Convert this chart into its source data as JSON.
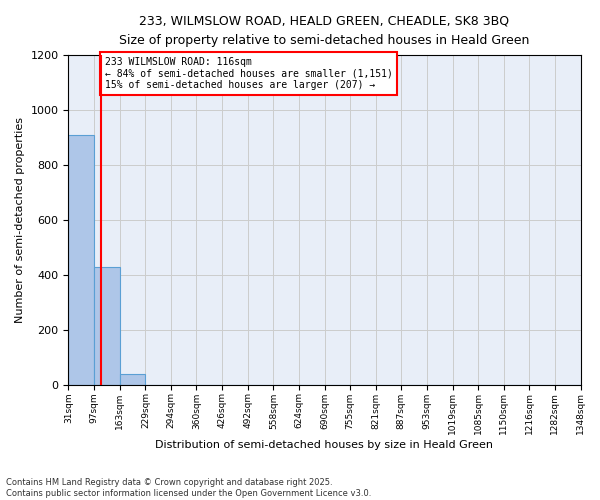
{
  "title_line1": "233, WILMSLOW ROAD, HEALD GREEN, CHEADLE, SK8 3BQ",
  "title_line2": "Size of property relative to semi-detached houses in Heald Green",
  "xlabel": "Distribution of semi-detached houses by size in Heald Green",
  "ylabel": "Number of semi-detached properties",
  "annotation_title": "233 WILMSLOW ROAD: 116sqm",
  "annotation_line2": "← 84% of semi-detached houses are smaller (1,151)",
  "annotation_line3": "15% of semi-detached houses are larger (207) →",
  "footer_line1": "Contains HM Land Registry data © Crown copyright and database right 2025.",
  "footer_line2": "Contains public sector information licensed under the Open Government Licence v3.0.",
  "property_size": 116,
  "bar_edges": [
    31,
    97,
    163,
    229,
    294,
    360,
    426,
    492,
    558,
    624,
    690,
    755,
    821,
    887,
    953,
    1019,
    1085,
    1150,
    1216,
    1282,
    1348
  ],
  "bar_heights": [
    910,
    430,
    40,
    0,
    0,
    0,
    0,
    0,
    0,
    0,
    0,
    0,
    0,
    0,
    0,
    0,
    0,
    0,
    0,
    0
  ],
  "bar_color": "#aec6e8",
  "bar_edge_color": "#5a9fd4",
  "vline_color": "red",
  "vline_x": 116,
  "ylim": [
    0,
    1200
  ],
  "yticks": [
    0,
    200,
    400,
    600,
    800,
    1000,
    1200
  ],
  "grid_color": "#cccccc",
  "background_color": "#e8eef8",
  "annotation_box_color": "white",
  "annotation_box_edge": "red",
  "tick_labels": [
    "31sqm",
    "97sqm",
    "163sqm",
    "229sqm",
    "294sqm",
    "360sqm",
    "426sqm",
    "492sqm",
    "558sqm",
    "624sqm",
    "690sqm",
    "755sqm",
    "821sqm",
    "887sqm",
    "953sqm",
    "1019sqm",
    "1085sqm",
    "1150sqm",
    "1216sqm",
    "1282sqm",
    "1348sqm"
  ]
}
